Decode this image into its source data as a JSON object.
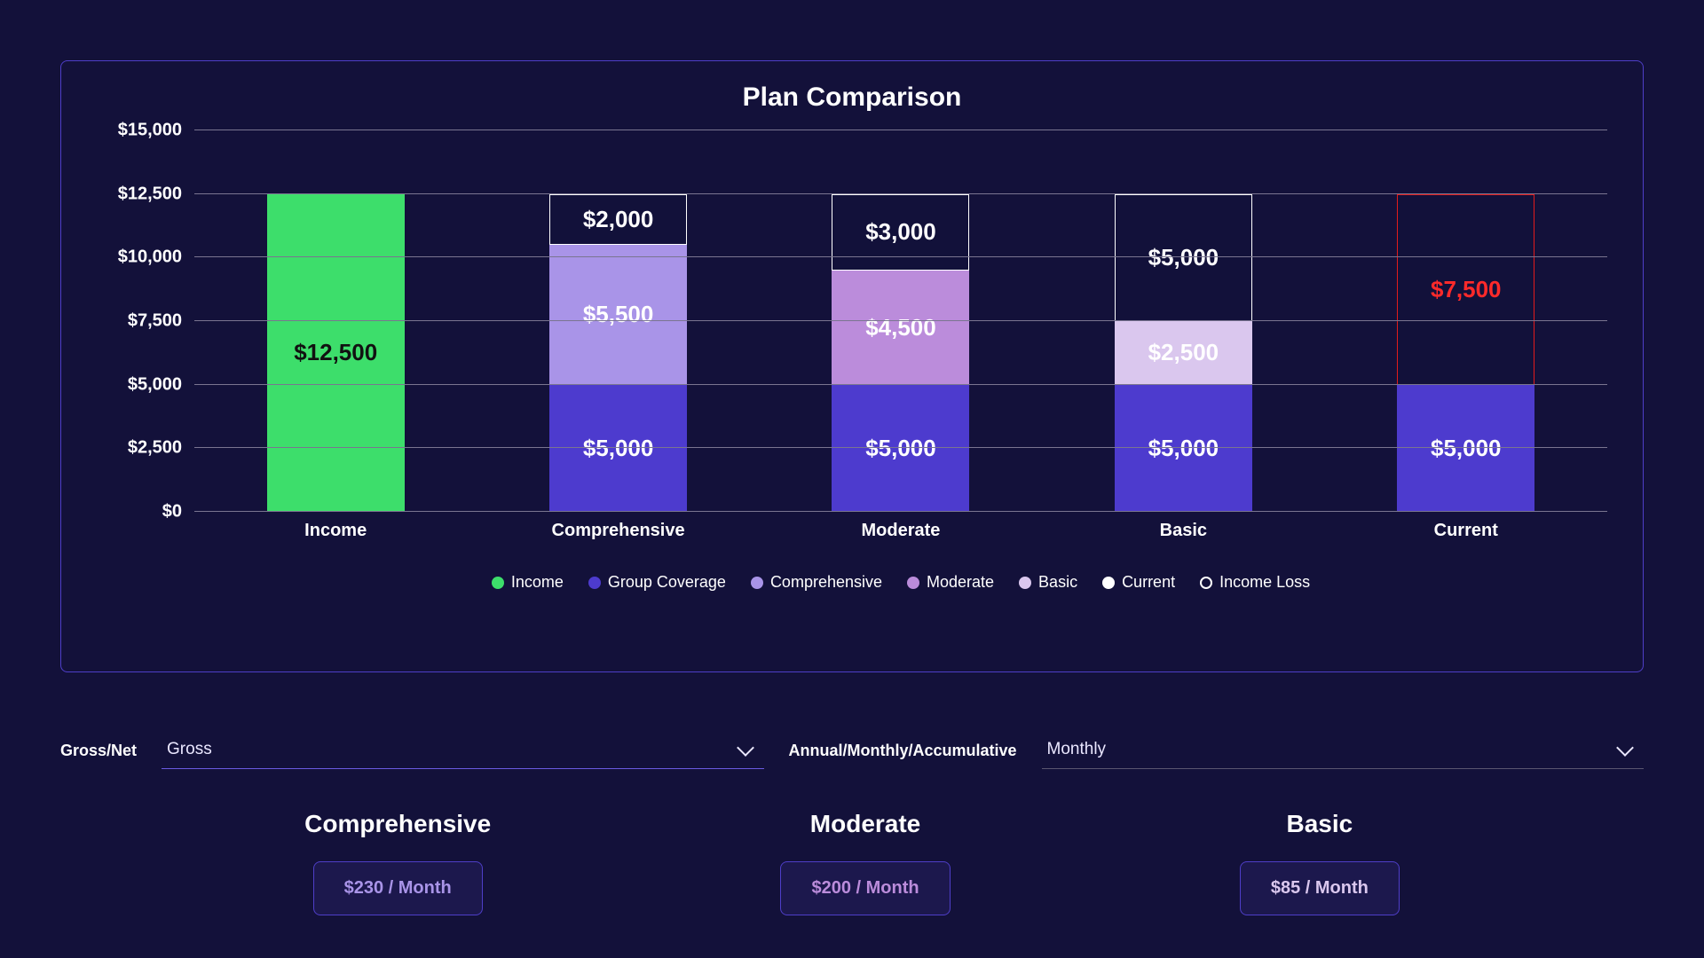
{
  "chart": {
    "title": "Plan Comparison",
    "background": "#13113a",
    "card_border": "#4e3ec8",
    "grid_color": "#7a7590",
    "y": {
      "min": 0,
      "max": 15000,
      "ticks": [
        {
          "v": 0,
          "label": "$0"
        },
        {
          "v": 2500,
          "label": "$2,500"
        },
        {
          "v": 5000,
          "label": "$5,000"
        },
        {
          "v": 7500,
          "label": "$7,500"
        },
        {
          "v": 10000,
          "label": "$10,000"
        },
        {
          "v": 12500,
          "label": "$12,500"
        },
        {
          "v": 15000,
          "label": "$15,000"
        }
      ],
      "axis_fontsize": 20
    },
    "label_fontsize": 20,
    "value_fontsize": 26,
    "series_colors": {
      "income": "#3dde6b",
      "group": "#4d3bce",
      "comprehensive": "#a994e8",
      "moderate": "#bb8cdb",
      "basic": "#dac7ee",
      "current": "#ffffff",
      "loss_border": "#e21b1b",
      "loss_fill": "#12113a",
      "loss_text": "#ff2a2a"
    },
    "columns": [
      {
        "name": "Income",
        "segments": [
          {
            "series": "income",
            "value": 12500,
            "label": "$12,500",
            "text": "#111111"
          }
        ]
      },
      {
        "name": "Comprehensive",
        "segments": [
          {
            "series": "group",
            "value": 5000,
            "label": "$5,000",
            "text": "#ffffff"
          },
          {
            "series": "comprehensive",
            "value": 5500,
            "label": "$5,500",
            "text": "#ffffff"
          },
          {
            "series": "loss",
            "value": 2000,
            "label": "$2,000",
            "text": "#ffffff",
            "border": "#ffffff"
          }
        ]
      },
      {
        "name": "Moderate",
        "segments": [
          {
            "series": "group",
            "value": 5000,
            "label": "$5,000",
            "text": "#ffffff"
          },
          {
            "series": "moderate",
            "value": 4500,
            "label": "$4,500",
            "text": "#ffffff"
          },
          {
            "series": "loss",
            "value": 3000,
            "label": "$3,000",
            "text": "#ffffff",
            "border": "#ffffff"
          }
        ]
      },
      {
        "name": "Basic",
        "segments": [
          {
            "series": "group",
            "value": 5000,
            "label": "$5,000",
            "text": "#ffffff"
          },
          {
            "series": "basic",
            "value": 2500,
            "label": "$2,500",
            "text": "#ffffff"
          },
          {
            "series": "loss",
            "value": 5000,
            "label": "$5,000",
            "text": "#ffffff",
            "border": "#ffffff"
          }
        ]
      },
      {
        "name": "Current",
        "segments": [
          {
            "series": "group",
            "value": 5000,
            "label": "$5,000",
            "text": "#ffffff"
          },
          {
            "series": "loss_red",
            "value": 7500,
            "label": "$7,500",
            "text": "#ff2a2a",
            "border": "#e21b1b"
          }
        ]
      }
    ],
    "legend": [
      {
        "label": "Income",
        "color": "#3dde6b"
      },
      {
        "label": "Group Coverage",
        "color": "#4d3bce"
      },
      {
        "label": "Comprehensive",
        "color": "#a994e8"
      },
      {
        "label": "Moderate",
        "color": "#bb8cdb"
      },
      {
        "label": "Basic",
        "color": "#dac7ee"
      },
      {
        "label": "Current",
        "color": "#ffffff"
      },
      {
        "label": "Income Loss",
        "ring": true
      }
    ]
  },
  "controls": {
    "grossnet": {
      "label": "Gross/Net",
      "value": "Gross"
    },
    "period": {
      "label": "Annual/Monthly/Accumulative",
      "value": "Monthly"
    }
  },
  "plans": [
    {
      "name": "Comprehensive",
      "price": "$230 / Month",
      "color": "#a994e8"
    },
    {
      "name": "Moderate",
      "price": "$200 / Month",
      "color": "#bb8cdb"
    },
    {
      "name": "Basic",
      "price": "$85 / Month",
      "color": "#dac7ee"
    }
  ]
}
